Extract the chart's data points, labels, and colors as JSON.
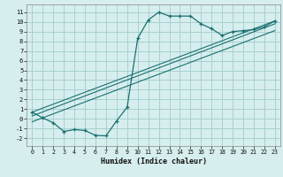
{
  "title": "",
  "xlabel": "Humidex (Indice chaleur)",
  "ylabel": "",
  "bg_color": "#d7eeee",
  "grid_color": "#a8d0d0",
  "line_color": "#1a7070",
  "xlim": [
    -0.5,
    23.5
  ],
  "ylim": [
    -2.8,
    11.8
  ],
  "xticks": [
    0,
    1,
    2,
    3,
    4,
    5,
    6,
    7,
    8,
    9,
    10,
    11,
    12,
    13,
    14,
    15,
    16,
    17,
    18,
    19,
    20,
    21,
    22,
    23
  ],
  "yticks": [
    -2,
    -1,
    0,
    1,
    2,
    3,
    4,
    5,
    6,
    7,
    8,
    9,
    10,
    11
  ],
  "curve1_x": [
    0,
    1,
    2,
    3,
    4,
    5,
    6,
    7,
    8,
    9,
    10,
    11,
    12,
    13,
    14,
    15,
    16,
    17,
    18,
    19,
    20,
    21,
    22,
    23
  ],
  "curve1_y": [
    0.7,
    0.1,
    -0.4,
    -1.3,
    -1.1,
    -1.2,
    -1.7,
    -1.75,
    -0.2,
    1.2,
    8.3,
    10.2,
    11.0,
    10.6,
    10.6,
    10.6,
    9.8,
    9.3,
    8.6,
    9.0,
    9.1,
    9.2,
    9.5,
    10.1
  ],
  "line2_x": [
    0,
    23
  ],
  "line2_y": [
    0.3,
    9.8
  ],
  "line3_x": [
    0,
    23
  ],
  "line3_y": [
    -0.3,
    9.1
  ],
  "line4_x": [
    0,
    23
  ],
  "line4_y": [
    0.7,
    10.1
  ]
}
